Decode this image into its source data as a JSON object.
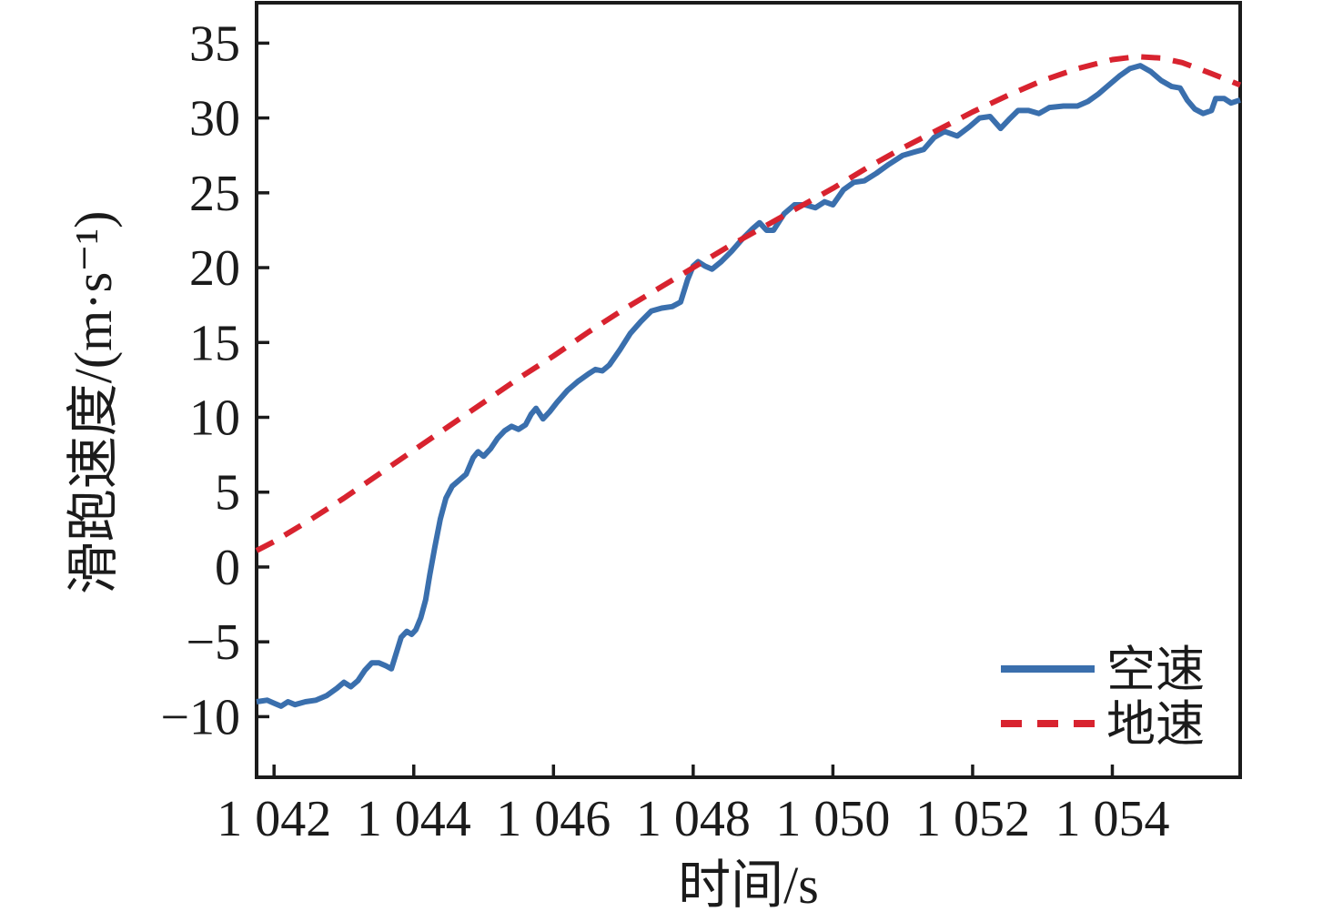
{
  "chart_data": {
    "type": "line",
    "title": "",
    "xlabel": "时间/s",
    "ylabel": "滑跑速度/(m·s⁻¹)",
    "xlim": [
      1041.75,
      1055.83
    ],
    "ylim": [
      -14.05,
      37.7
    ],
    "grid": false,
    "legend_position": "lower right",
    "xticks": [
      1042,
      1044,
      1046,
      1048,
      1050,
      1052,
      1054
    ],
    "xtick_labels": [
      "1 042",
      "1 044",
      "1 046",
      "1 048",
      "1 050",
      "1 052",
      "1 054"
    ],
    "yticks": [
      -10,
      -5,
      0,
      5,
      10,
      15,
      20,
      25,
      30,
      35
    ],
    "ytick_labels": [
      "−10",
      "−5",
      "0",
      "5",
      "10",
      "15",
      "20",
      "25",
      "30",
      "35"
    ],
    "axis_color": "#1b1b1b",
    "series": [
      {
        "name": "空速",
        "style": "solid",
        "color": "#3a6fad",
        "line_width": 6,
        "points": [
          [
            1041.75,
            -9.0
          ],
          [
            1041.9,
            -8.9
          ],
          [
            1042.0,
            -9.1
          ],
          [
            1042.1,
            -9.3
          ],
          [
            1042.2,
            -9.0
          ],
          [
            1042.3,
            -9.2
          ],
          [
            1042.45,
            -9.0
          ],
          [
            1042.6,
            -8.9
          ],
          [
            1042.75,
            -8.6
          ],
          [
            1042.9,
            -8.1
          ],
          [
            1043.0,
            -7.7
          ],
          [
            1043.1,
            -8.0
          ],
          [
            1043.2,
            -7.6
          ],
          [
            1043.3,
            -6.9
          ],
          [
            1043.4,
            -6.4
          ],
          [
            1043.5,
            -6.4
          ],
          [
            1043.6,
            -6.6
          ],
          [
            1043.68,
            -6.8
          ],
          [
            1043.76,
            -5.6
          ],
          [
            1043.82,
            -4.7
          ],
          [
            1043.9,
            -4.3
          ],
          [
            1043.97,
            -4.5
          ],
          [
            1044.03,
            -4.2
          ],
          [
            1044.1,
            -3.4
          ],
          [
            1044.17,
            -2.2
          ],
          [
            1044.23,
            -0.5
          ],
          [
            1044.3,
            1.3
          ],
          [
            1044.38,
            3.2
          ],
          [
            1044.46,
            4.6
          ],
          [
            1044.55,
            5.4
          ],
          [
            1044.65,
            5.8
          ],
          [
            1044.75,
            6.2
          ],
          [
            1044.85,
            7.3
          ],
          [
            1044.92,
            7.7
          ],
          [
            1045.0,
            7.4
          ],
          [
            1045.1,
            7.9
          ],
          [
            1045.2,
            8.6
          ],
          [
            1045.3,
            9.1
          ],
          [
            1045.4,
            9.4
          ],
          [
            1045.5,
            9.2
          ],
          [
            1045.6,
            9.5
          ],
          [
            1045.68,
            10.2
          ],
          [
            1045.75,
            10.6
          ],
          [
            1045.85,
            9.9
          ],
          [
            1045.95,
            10.4
          ],
          [
            1046.05,
            11.0
          ],
          [
            1046.2,
            11.8
          ],
          [
            1046.35,
            12.4
          ],
          [
            1046.5,
            12.9
          ],
          [
            1046.6,
            13.2
          ],
          [
            1046.7,
            13.1
          ],
          [
            1046.8,
            13.5
          ],
          [
            1046.95,
            14.5
          ],
          [
            1047.1,
            15.6
          ],
          [
            1047.25,
            16.4
          ],
          [
            1047.4,
            17.1
          ],
          [
            1047.55,
            17.3
          ],
          [
            1047.7,
            17.4
          ],
          [
            1047.82,
            17.7
          ],
          [
            1047.92,
            19.2
          ],
          [
            1048.0,
            20.1
          ],
          [
            1048.07,
            20.4
          ],
          [
            1048.17,
            20.1
          ],
          [
            1048.27,
            19.9
          ],
          [
            1048.4,
            20.4
          ],
          [
            1048.55,
            21.1
          ],
          [
            1048.7,
            21.9
          ],
          [
            1048.85,
            22.6
          ],
          [
            1048.95,
            23.0
          ],
          [
            1049.05,
            22.5
          ],
          [
            1049.15,
            22.5
          ],
          [
            1049.3,
            23.6
          ],
          [
            1049.45,
            24.2
          ],
          [
            1049.6,
            24.2
          ],
          [
            1049.75,
            24.0
          ],
          [
            1049.88,
            24.4
          ],
          [
            1050.0,
            24.2
          ],
          [
            1050.15,
            25.2
          ],
          [
            1050.3,
            25.7
          ],
          [
            1050.45,
            25.8
          ],
          [
            1050.62,
            26.3
          ],
          [
            1050.8,
            26.9
          ],
          [
            1051.0,
            27.5
          ],
          [
            1051.15,
            27.7
          ],
          [
            1051.3,
            27.9
          ],
          [
            1051.45,
            28.7
          ],
          [
            1051.6,
            29.1
          ],
          [
            1051.78,
            28.8
          ],
          [
            1051.95,
            29.4
          ],
          [
            1052.1,
            30.0
          ],
          [
            1052.25,
            30.1
          ],
          [
            1052.4,
            29.3
          ],
          [
            1052.52,
            29.9
          ],
          [
            1052.65,
            30.5
          ],
          [
            1052.8,
            30.5
          ],
          [
            1052.95,
            30.3
          ],
          [
            1053.1,
            30.7
          ],
          [
            1053.3,
            30.8
          ],
          [
            1053.5,
            30.8
          ],
          [
            1053.65,
            31.1
          ],
          [
            1053.8,
            31.6
          ],
          [
            1053.95,
            32.2
          ],
          [
            1054.1,
            32.8
          ],
          [
            1054.25,
            33.3
          ],
          [
            1054.4,
            33.5
          ],
          [
            1054.55,
            33.1
          ],
          [
            1054.7,
            32.5
          ],
          [
            1054.85,
            32.1
          ],
          [
            1054.97,
            32.0
          ],
          [
            1055.07,
            31.2
          ],
          [
            1055.18,
            30.6
          ],
          [
            1055.3,
            30.3
          ],
          [
            1055.42,
            30.5
          ],
          [
            1055.48,
            31.3
          ],
          [
            1055.6,
            31.3
          ],
          [
            1055.7,
            31.0
          ],
          [
            1055.83,
            31.2
          ]
        ]
      },
      {
        "name": "地速",
        "style": "dashed",
        "color": "#d8232f",
        "line_width": 6,
        "points": [
          [
            1041.75,
            1.1
          ],
          [
            1042.0,
            1.7
          ],
          [
            1042.5,
            3.1
          ],
          [
            1043.0,
            4.6
          ],
          [
            1043.5,
            6.2
          ],
          [
            1044.0,
            7.8
          ],
          [
            1044.5,
            9.4
          ],
          [
            1045.0,
            11.0
          ],
          [
            1045.5,
            12.6
          ],
          [
            1046.0,
            14.1
          ],
          [
            1046.5,
            15.7
          ],
          [
            1047.0,
            17.2
          ],
          [
            1047.5,
            18.6
          ],
          [
            1048.0,
            20.0
          ],
          [
            1048.5,
            21.4
          ],
          [
            1049.0,
            22.7
          ],
          [
            1049.5,
            24.0
          ],
          [
            1050.0,
            25.3
          ],
          [
            1050.5,
            26.7
          ],
          [
            1051.0,
            28.0
          ],
          [
            1051.5,
            29.2
          ],
          [
            1052.0,
            30.4
          ],
          [
            1052.5,
            31.5
          ],
          [
            1053.0,
            32.5
          ],
          [
            1053.5,
            33.3
          ],
          [
            1054.0,
            33.9
          ],
          [
            1054.35,
            34.1
          ],
          [
            1054.7,
            34.0
          ],
          [
            1055.0,
            33.7
          ],
          [
            1055.4,
            33.0
          ],
          [
            1055.83,
            32.2
          ]
        ]
      }
    ]
  }
}
